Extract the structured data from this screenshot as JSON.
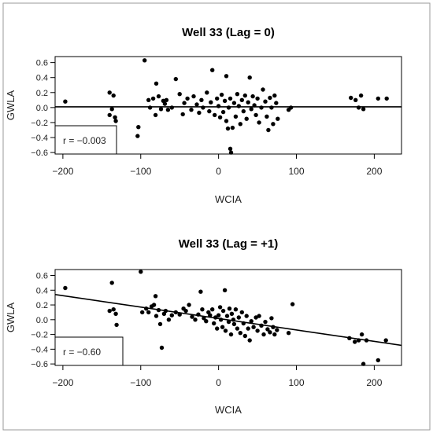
{
  "chart_data": [
    {
      "type": "scatter",
      "title": "Well 33 (Lag = 0)",
      "xlabel": "WCIA",
      "ylabel": "GWLA",
      "xlim": [
        -210,
        235
      ],
      "ylim": [
        -0.62,
        0.68
      ],
      "xticks": [
        -200,
        -100,
        0,
        100,
        200
      ],
      "yticks": [
        -0.6,
        -0.4,
        -0.2,
        0.0,
        0.2,
        0.4,
        0.6
      ],
      "x_tick_labels": [
        "−200",
        "−100",
        "0",
        "100",
        "200"
      ],
      "y_tick_labels": [
        "−0.6",
        "−0.4",
        "−0.2",
        "0.0",
        "0.2",
        "0.4",
        "0.6"
      ],
      "annotation": "r = −0.003",
      "fit_line": {
        "intercept": 0.01,
        "slope": 0.0
      },
      "points": [
        [
          -197,
          0.08
        ],
        [
          -140,
          0.2
        ],
        [
          -135,
          0.16
        ],
        [
          -140,
          -0.1
        ],
        [
          -137,
          -0.02
        ],
        [
          -133,
          -0.13
        ],
        [
          -132,
          -0.18
        ],
        [
          -104,
          -0.38
        ],
        [
          -103,
          -0.26
        ],
        [
          -95,
          0.63
        ],
        [
          -90,
          0.1
        ],
        [
          -88,
          0.0
        ],
        [
          -84,
          0.12
        ],
        [
          -81,
          -0.1
        ],
        [
          -80,
          0.32
        ],
        [
          -77,
          0.15
        ],
        [
          -74,
          -0.02
        ],
        [
          -71,
          0.09
        ],
        [
          -69,
          0.05
        ],
        [
          -67,
          0.1
        ],
        [
          -65,
          -0.03
        ],
        [
          -60,
          0.0
        ],
        [
          -55,
          0.38
        ],
        [
          -50,
          0.18
        ],
        [
          -46,
          -0.09
        ],
        [
          -44,
          0.06
        ],
        [
          -40,
          0.12
        ],
        [
          -35,
          -0.03
        ],
        [
          -32,
          0.15
        ],
        [
          -28,
          0.04
        ],
        [
          -25,
          -0.07
        ],
        [
          -22,
          0.1
        ],
        [
          -20,
          0.0
        ],
        [
          -15,
          0.2
        ],
        [
          -12,
          -0.05
        ],
        [
          -10,
          0.07
        ],
        [
          -8,
          0.5
        ],
        [
          -5,
          -0.1
        ],
        [
          -2,
          0.12
        ],
        [
          0,
          0.02
        ],
        [
          2,
          -0.13
        ],
        [
          4,
          0.17
        ],
        [
          6,
          -0.06
        ],
        [
          8,
          0.09
        ],
        [
          10,
          0.42
        ],
        [
          10,
          -0.18
        ],
        [
          12,
          -0.28
        ],
        [
          13,
          0.0
        ],
        [
          15,
          0.12
        ],
        [
          15,
          -0.55
        ],
        [
          16,
          -0.6
        ],
        [
          18,
          -0.27
        ],
        [
          20,
          0.06
        ],
        [
          22,
          -0.12
        ],
        [
          24,
          0.18
        ],
        [
          26,
          0.02
        ],
        [
          28,
          -0.22
        ],
        [
          30,
          0.1
        ],
        [
          32,
          -0.05
        ],
        [
          34,
          0.16
        ],
        [
          36,
          -0.15
        ],
        [
          38,
          0.07
        ],
        [
          40,
          0.4
        ],
        [
          42,
          -0.02
        ],
        [
          44,
          0.15
        ],
        [
          46,
          0.03
        ],
        [
          48,
          -0.1
        ],
        [
          50,
          0.12
        ],
        [
          52,
          -0.2
        ],
        [
          55,
          0.0
        ],
        [
          57,
          0.24
        ],
        [
          60,
          0.08
        ],
        [
          62,
          -0.12
        ],
        [
          64,
          -0.3
        ],
        [
          66,
          0.13
        ],
        [
          68,
          0.0
        ],
        [
          70,
          -0.22
        ],
        [
          72,
          0.16
        ],
        [
          74,
          0.06
        ],
        [
          76,
          -0.15
        ],
        [
          90,
          -0.03
        ],
        [
          93,
          0.0
        ],
        [
          170,
          0.13
        ],
        [
          176,
          0.1
        ],
        [
          180,
          0.0
        ],
        [
          183,
          0.16
        ],
        [
          186,
          -0.02
        ],
        [
          205,
          0.12
        ],
        [
          216,
          0.12
        ]
      ]
    },
    {
      "type": "scatter",
      "title": "Well 33 (Lag = +1)",
      "xlabel": "WCIA",
      "ylabel": "GWLA",
      "xlim": [
        -210,
        235
      ],
      "ylim": [
        -0.62,
        0.68
      ],
      "xticks": [
        -200,
        -100,
        0,
        100,
        200
      ],
      "yticks": [
        -0.6,
        -0.4,
        -0.2,
        0.0,
        0.2,
        0.4,
        0.6
      ],
      "x_tick_labels": [
        "−200",
        "−100",
        "0",
        "100",
        "200"
      ],
      "y_tick_labels": [
        "−0.6",
        "−0.4",
        "−0.2",
        "0.0",
        "0.2",
        "0.4",
        "0.6"
      ],
      "annotation": "r = −0.60",
      "fit_line": {
        "intercept": 0.016,
        "slope": -0.00155
      },
      "points": [
        [
          -197,
          0.43
        ],
        [
          -140,
          0.12
        ],
        [
          -137,
          0.5
        ],
        [
          -135,
          0.14
        ],
        [
          -132,
          0.08
        ],
        [
          -131,
          -0.07
        ],
        [
          -100,
          0.65
        ],
        [
          -98,
          0.1
        ],
        [
          -93,
          0.15
        ],
        [
          -90,
          0.1
        ],
        [
          -86,
          0.18
        ],
        [
          -83,
          0.2
        ],
        [
          -81,
          0.32
        ],
        [
          -80,
          0.05
        ],
        [
          -77,
          0.13
        ],
        [
          -75,
          -0.06
        ],
        [
          -73,
          -0.38
        ],
        [
          -70,
          0.08
        ],
        [
          -68,
          0.12
        ],
        [
          -64,
          0.0
        ],
        [
          -60,
          0.06
        ],
        [
          -55,
          0.1
        ],
        [
          -50,
          0.07
        ],
        [
          -45,
          0.15
        ],
        [
          -42,
          0.12
        ],
        [
          -38,
          0.2
        ],
        [
          -34,
          0.04
        ],
        [
          -30,
          0.0
        ],
        [
          -26,
          0.07
        ],
        [
          -23,
          0.38
        ],
        [
          -21,
          0.14
        ],
        [
          -19,
          0.02
        ],
        [
          -16,
          -0.02
        ],
        [
          -13,
          0.1
        ],
        [
          -11,
          0.06
        ],
        [
          -8,
          0.14
        ],
        [
          -6,
          -0.05
        ],
        [
          -4,
          0.03
        ],
        [
          -2,
          -0.12
        ],
        [
          0,
          0.06
        ],
        [
          2,
          0.17
        ],
        [
          3,
          0.0
        ],
        [
          5,
          -0.1
        ],
        [
          6,
          0.12
        ],
        [
          8,
          0.4
        ],
        [
          9,
          -0.15
        ],
        [
          11,
          0.05
        ],
        [
          13,
          -0.03
        ],
        [
          14,
          0.15
        ],
        [
          16,
          -0.2
        ],
        [
          17,
          0.08
        ],
        [
          19,
          0.0
        ],
        [
          20,
          -0.06
        ],
        [
          22,
          0.14
        ],
        [
          24,
          -0.12
        ],
        [
          26,
          0.03
        ],
        [
          28,
          -0.18
        ],
        [
          30,
          0.1
        ],
        [
          32,
          -0.05
        ],
        [
          34,
          -0.22
        ],
        [
          36,
          0.05
        ],
        [
          38,
          -0.12
        ],
        [
          40,
          -0.28
        ],
        [
          42,
          -0.02
        ],
        [
          45,
          -0.1
        ],
        [
          48,
          0.03
        ],
        [
          50,
          -0.15
        ],
        [
          52,
          0.05
        ],
        [
          55,
          -0.08
        ],
        [
          58,
          -0.2
        ],
        [
          60,
          -0.03
        ],
        [
          63,
          -0.13
        ],
        [
          66,
          -0.17
        ],
        [
          68,
          0.02
        ],
        [
          70,
          -0.1
        ],
        [
          72,
          -0.2
        ],
        [
          75,
          -0.14
        ],
        [
          90,
          -0.18
        ],
        [
          95,
          0.21
        ],
        [
          168,
          -0.25
        ],
        [
          175,
          -0.3
        ],
        [
          180,
          -0.28
        ],
        [
          184,
          -0.2
        ],
        [
          186,
          -0.6
        ],
        [
          190,
          -0.28
        ],
        [
          205,
          -0.55
        ],
        [
          215,
          -0.28
        ]
      ]
    }
  ]
}
